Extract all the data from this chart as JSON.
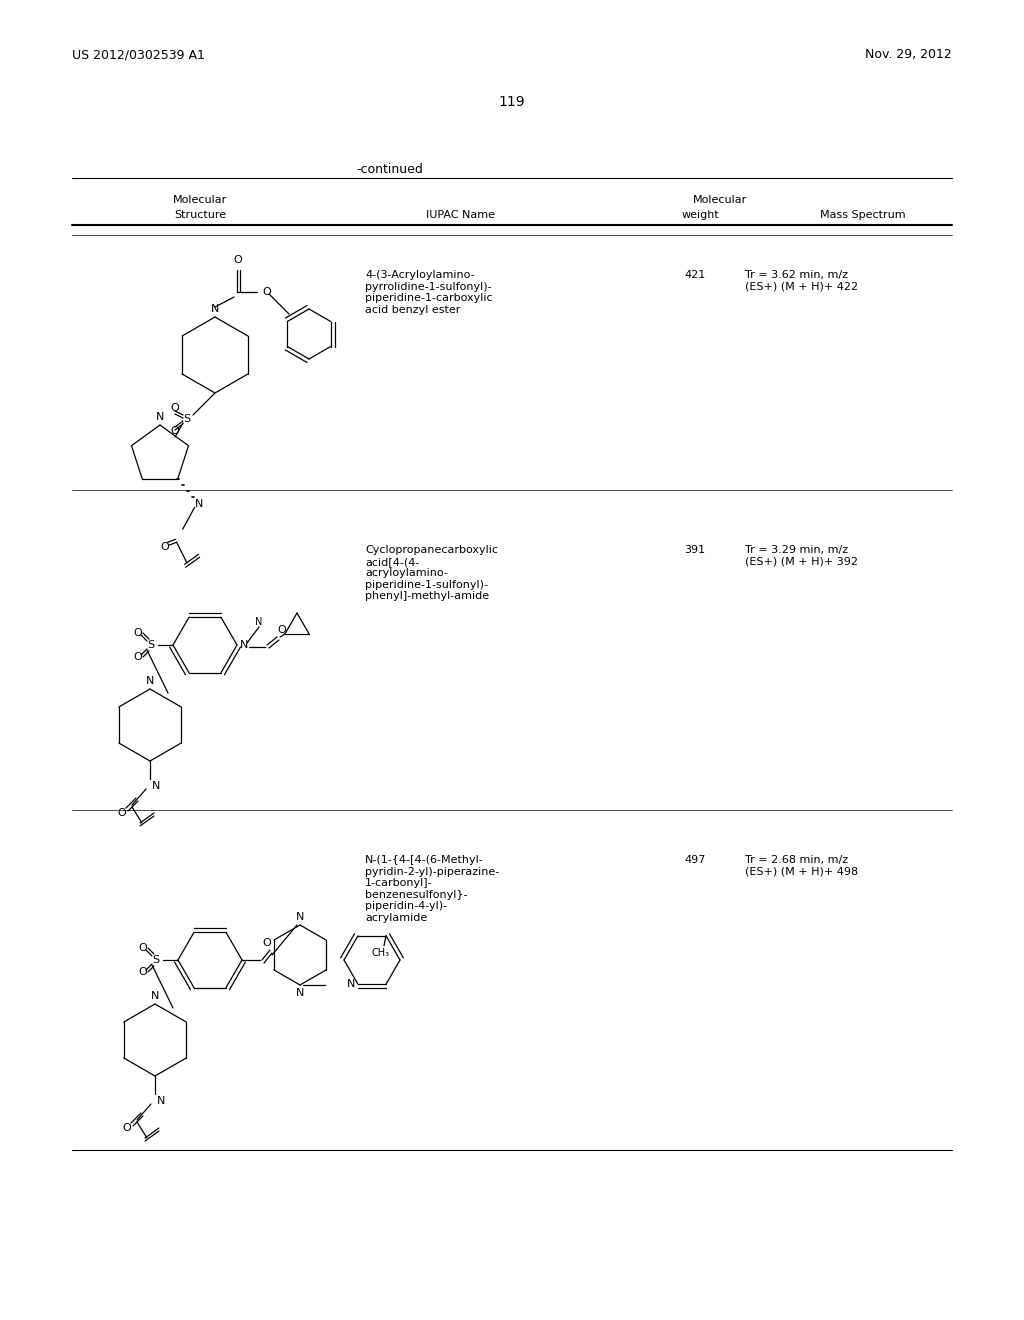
{
  "header_left": "US 2012/0302539 A1",
  "header_right": "Nov. 29, 2012",
  "page_number": "119",
  "continued_label": "-continued",
  "col1_header": "Structure",
  "col2_header": "IUPAC Name",
  "col3a_header": "Molecular",
  "col3b_header": "weight",
  "col4_header": "Mass Spectrum",
  "row1_iupac": "4-(3-Acryloylamino-\npyrrolidine-1-sulfonyl)-\npiperidine-1-carboxylic\nacid benzyl ester",
  "row1_mw": "421",
  "row1_ms": "Tr = 3.62 min, m/z\n(ES+) (M + H)+ 422",
  "row2_iupac": "Cyclopropanecarboxylic\nacid[4-(4-\nacryloylamino-\npiperidine-1-sulfonyl)-\nphenyl]-methyl-amide",
  "row2_mw": "391",
  "row2_ms": "Tr = 3.29 min, m/z\n(ES+) (M + H)+ 392",
  "row3_iupac": "N-(1-{4-[4-(6-Methyl-\npyridin-2-yl)-piperazine-\n1-carbonyl]-\nbenzenesulfonyl}-\npiperidin-4-yl)-\nacrylamide",
  "row3_mw": "497",
  "row3_ms": "Tr = 2.68 min, m/z\n(ES+) (M + H)+ 498",
  "bg_color": "#ffffff"
}
